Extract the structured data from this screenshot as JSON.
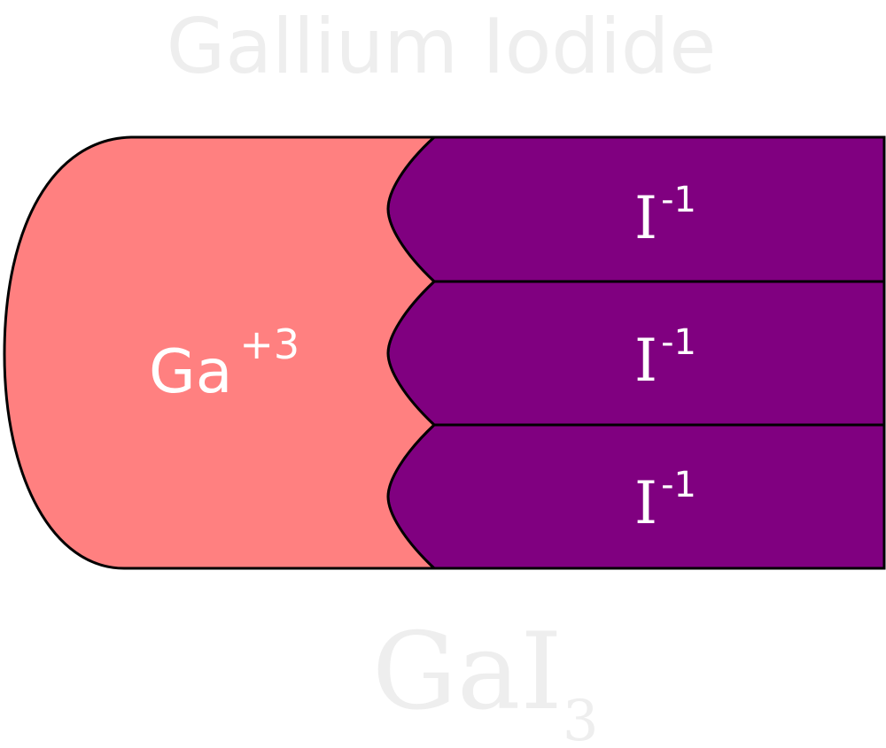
{
  "title": "Gallium Iodide",
  "cation": {
    "symbol": "Ga",
    "charge": "+3"
  },
  "anions": [
    {
      "symbol": "I",
      "charge": "-1"
    },
    {
      "symbol": "I",
      "charge": "-1"
    },
    {
      "symbol": "I",
      "charge": "-1"
    }
  ],
  "formula": {
    "base": "GaI",
    "subscript": "3"
  },
  "colors": {
    "cation_fill": "#FF8080",
    "anion_fill": "#800080",
    "outline": "#000000",
    "label": "#FFFFFF",
    "watermark": "#EEEEEE"
  }
}
